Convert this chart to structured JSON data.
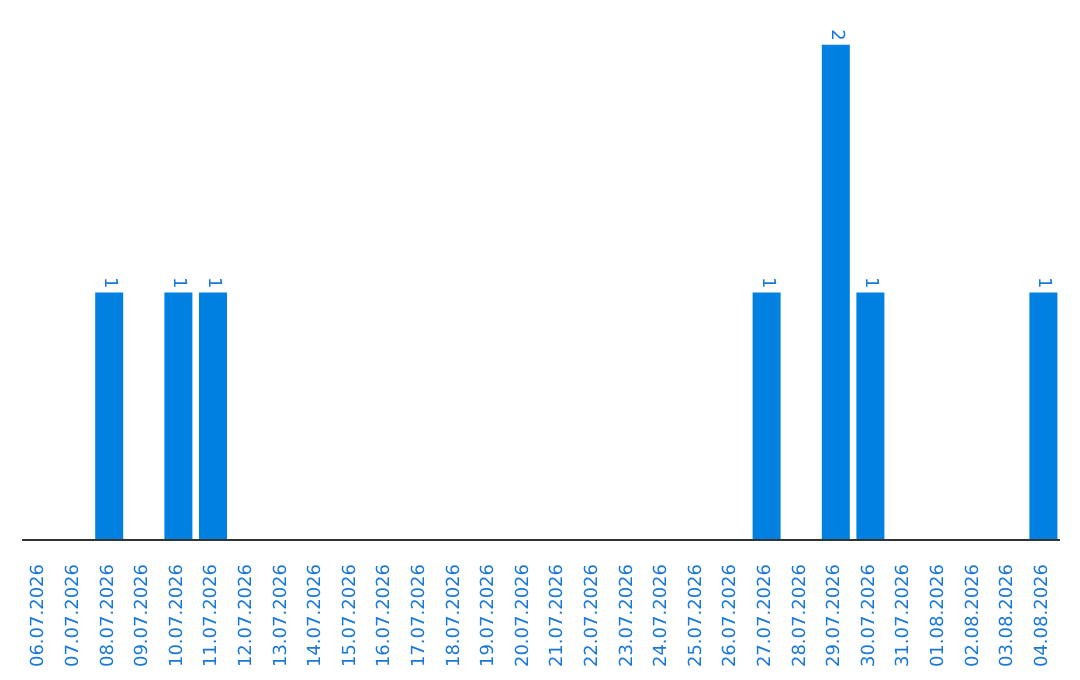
{
  "chart_data": {
    "type": "bar",
    "categories": [
      "06.07.2026",
      "07.07.2026",
      "08.07.2026",
      "09.07.2026",
      "10.07.2026",
      "11.07.2026",
      "12.07.2026",
      "13.07.2026",
      "14.07.2026",
      "15.07.2026",
      "16.07.2026",
      "17.07.2026",
      "18.07.2026",
      "19.07.2026",
      "20.07.2026",
      "21.07.2026",
      "22.07.2026",
      "23.07.2026",
      "24.07.2026",
      "25.07.2026",
      "26.07.2026",
      "27.07.2026",
      "28.07.2026",
      "29.07.2026",
      "30.07.2026",
      "31.07.2026",
      "01.08.2026",
      "02.08.2026",
      "03.08.2026",
      "04.08.2026"
    ],
    "values": [
      0,
      0,
      1,
      0,
      1,
      1,
      0,
      0,
      0,
      0,
      0,
      0,
      0,
      0,
      0,
      0,
      0,
      0,
      0,
      0,
      0,
      1,
      0,
      2,
      1,
      0,
      0,
      0,
      0,
      1
    ],
    "value_labels": [
      null,
      null,
      "1",
      null,
      "1",
      "1",
      null,
      null,
      null,
      null,
      null,
      null,
      null,
      null,
      null,
      null,
      null,
      null,
      null,
      null,
      null,
      "1",
      null,
      "2",
      "1",
      null,
      null,
      null,
      null,
      "1"
    ],
    "color": "#0080e0"
  }
}
